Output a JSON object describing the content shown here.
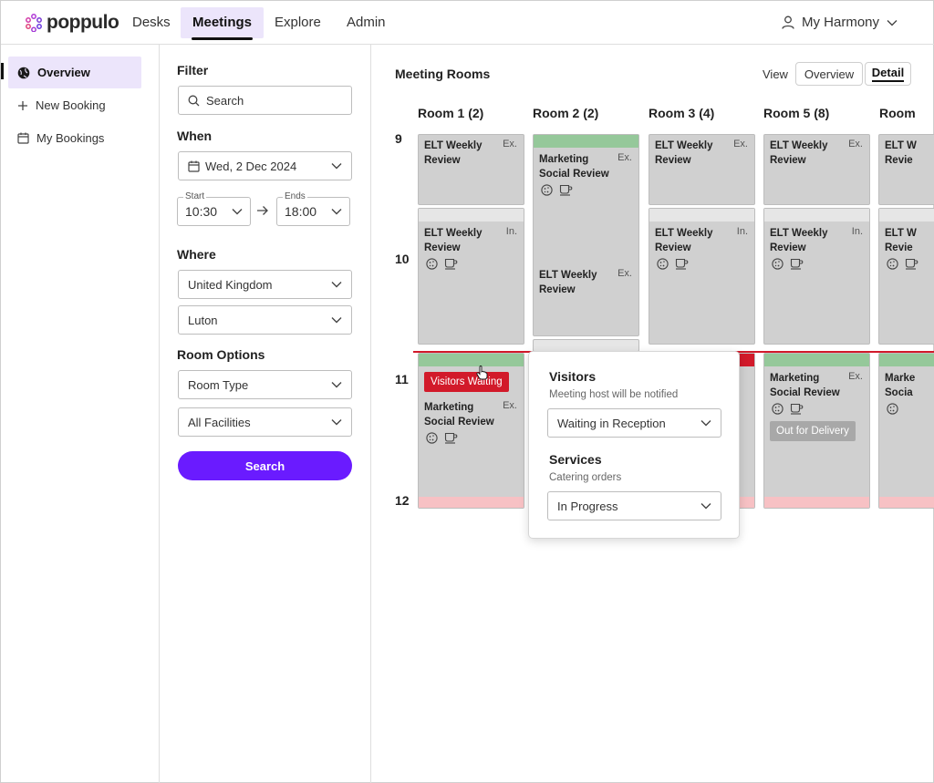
{
  "app": {
    "logo_text": "poppulo",
    "nav": [
      {
        "label": "Desks"
      },
      {
        "label": "Meetings"
      },
      {
        "label": "Explore"
      },
      {
        "label": "Admin"
      }
    ],
    "user_name": "My Harmony",
    "brand_color": "#6a1bff"
  },
  "sidebar": {
    "items": [
      {
        "label": "Overview",
        "icon": "globe-icon"
      },
      {
        "label": "New Booking",
        "icon": "plus-icon"
      },
      {
        "label": "My Bookings",
        "icon": "calendar-icon"
      }
    ]
  },
  "filter": {
    "heading": "Filter",
    "search_placeholder": "Search",
    "when_heading": "When",
    "date": "Wed, 2 Dec 2024",
    "start_label": "Start",
    "start_value": "10:30",
    "ends_label": "Ends",
    "ends_value": "18:00",
    "where_heading": "Where",
    "country": "United Kingdom",
    "city": "Luton",
    "room_options_heading": "Room Options",
    "room_type": "Room Type",
    "facilities": "All Facilities",
    "search_button": "Search"
  },
  "main": {
    "title": "Meeting Rooms",
    "view_label": "View",
    "view_overview": "Overview",
    "view_detail": "Detail",
    "rooms": [
      "Room 1 (2)",
      "Room 2 (2)",
      "Room 3 (4)",
      "Room 5 (8)",
      "Room"
    ],
    "hours": [
      "9",
      "10",
      "11",
      "12"
    ],
    "bookings": {
      "r1_a": {
        "title": "ELT Weekly Review",
        "code": "Ex."
      },
      "r1_b": {
        "title": "ELT Weekly Review",
        "code": "In."
      },
      "r1_c": {
        "title": "Marketing Social Review",
        "code": "Ex.",
        "badge": "Visitors Waiting"
      },
      "r2_a": {
        "title": "Marketing Social Review",
        "code": "Ex."
      },
      "r2_b": {
        "title": "ELT Weekly Review",
        "code": "Ex."
      },
      "r3_a": {
        "title": "ELT Weekly Review",
        "code": "Ex."
      },
      "r3_b": {
        "title": "ELT Weekly Review",
        "code": "In."
      },
      "r5_a": {
        "title": "ELT Weekly Review",
        "code": "Ex."
      },
      "r5_b": {
        "title": "ELT Weekly Review",
        "code": "In."
      },
      "r5_c": {
        "title": "Marketing Social Review",
        "code": "Ex.",
        "badge": "Out for Delivery"
      },
      "r6_a": {
        "title": "ELT W Revie"
      },
      "r6_b": {
        "title": "ELT W Revie"
      },
      "r6_c": {
        "title": "Marke Socia"
      }
    }
  },
  "popover": {
    "visitors_heading": "Visitors",
    "visitors_sub": "Meeting host will be notified",
    "visitors_value": "Waiting in Reception",
    "services_heading": "Services",
    "services_sub": "Catering orders",
    "services_value": "In Progress"
  },
  "colors": {
    "selected_tab_bg": "#ece5fb",
    "booking_grey": "#d0d0d0",
    "strip_green": "#95c89a",
    "strip_pink": "#f7c1c4",
    "alert_red": "#d21a2a"
  }
}
